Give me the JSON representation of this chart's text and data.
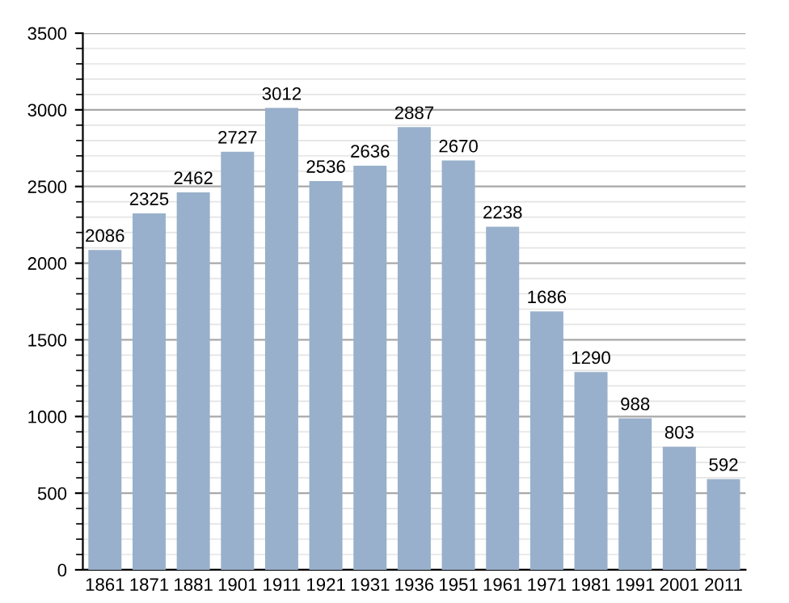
{
  "chart_data": {
    "type": "bar",
    "categories": [
      "1861",
      "1871",
      "1881",
      "1901",
      "1911",
      "1921",
      "1931",
      "1936",
      "1951",
      "1961",
      "1971",
      "1981",
      "1991",
      "2001",
      "2011"
    ],
    "values": [
      2086,
      2325,
      2462,
      2727,
      3012,
      2536,
      2636,
      2887,
      2670,
      2238,
      1686,
      1290,
      988,
      803,
      592
    ],
    "color": "#98b0cb",
    "ylim": [
      0,
      3500
    ],
    "yticks": [
      0,
      500,
      1000,
      1500,
      2000,
      2500,
      3000,
      3500
    ],
    "grid": "y",
    "data_labels": true
  }
}
